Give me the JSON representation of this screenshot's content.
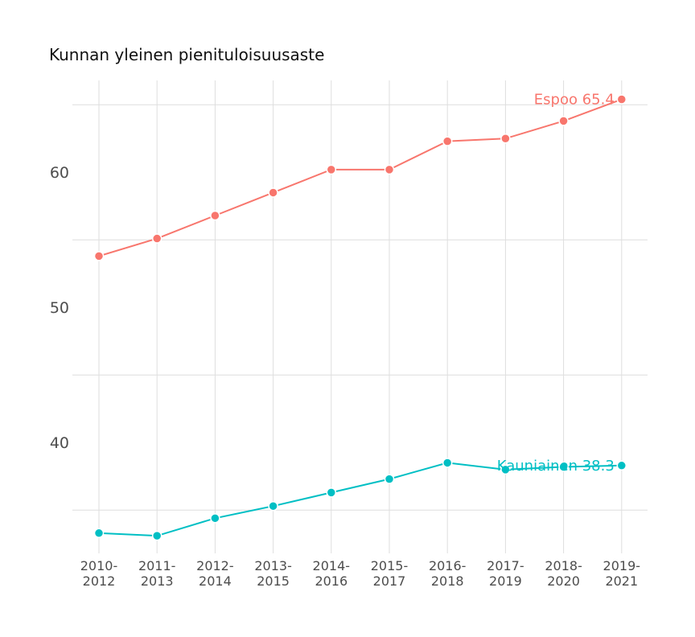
{
  "chart_data": {
    "type": "line",
    "title": "Kunnan yleinen pienituloisuusaste",
    "xlabel": "",
    "ylabel": "",
    "categories": [
      [
        "2010-",
        "2012"
      ],
      [
        "2011-",
        "2013"
      ],
      [
        "2012-",
        "2014"
      ],
      [
        "2013-",
        "2015"
      ],
      [
        "2014-",
        "2016"
      ],
      [
        "2015-",
        "2017"
      ],
      [
        "2016-",
        "2018"
      ],
      [
        "2017-",
        "2019"
      ],
      [
        "2018-",
        "2020"
      ],
      [
        "2019-",
        "2021"
      ]
    ],
    "ylim": [
      31.8,
      66.8
    ],
    "yticks": [
      40,
      50,
      60
    ],
    "ygrid_minor": [
      35,
      45,
      55,
      65
    ],
    "grid": true,
    "legend": "none",
    "series": [
      {
        "name": "Espoo",
        "color": "#F8766D",
        "values": [
          53.8,
          55.1,
          56.8,
          58.5,
          60.2,
          60.2,
          62.3,
          62.5,
          63.8,
          65.4
        ],
        "end_label": "Espoo 65.4"
      },
      {
        "name": "Kauniainen",
        "color": "#00BFC4",
        "values": [
          33.3,
          33.1,
          34.4,
          35.3,
          36.3,
          37.3,
          38.5,
          38.0,
          38.2,
          38.3
        ],
        "end_label": "Kauniainen 38.3"
      }
    ]
  }
}
